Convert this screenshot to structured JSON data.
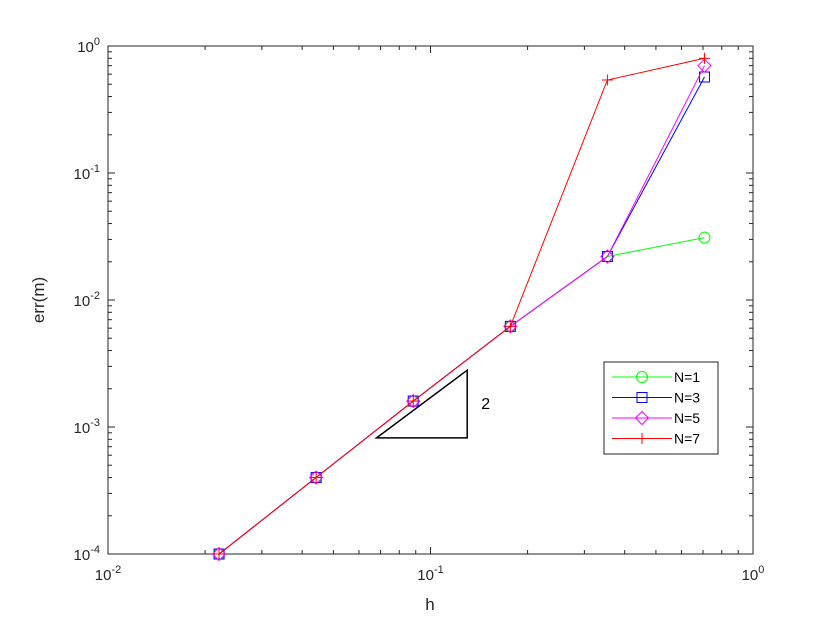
{
  "chart_data": {
    "type": "line",
    "xscale": "log",
    "yscale": "log",
    "xlim": [
      0.01,
      1
    ],
    "ylim": [
      0.0001,
      1
    ],
    "xlabel": "h",
    "ylabel": "err(m)",
    "title": "",
    "x_ticks": [
      {
        "base": "10",
        "exp": "-2"
      },
      {
        "base": "10",
        "exp": "-1"
      },
      {
        "base": "10",
        "exp": "0"
      }
    ],
    "y_ticks": [
      {
        "base": "10",
        "exp": "-4"
      },
      {
        "base": "10",
        "exp": "-3"
      },
      {
        "base": "10",
        "exp": "-2"
      },
      {
        "base": "10",
        "exp": "-1"
      },
      {
        "base": "10",
        "exp": "0"
      }
    ],
    "legend_position": "right",
    "grid": false,
    "series": [
      {
        "name": "N=1",
        "color": "#00ff00",
        "marker": "circle",
        "x": [
          0.0221,
          0.0442,
          0.0884,
          0.1768,
          0.3536,
          0.7071
        ],
        "y": [
          0.0001,
          0.0004,
          0.0016,
          0.0062,
          0.022,
          0.031
        ]
      },
      {
        "name": "N=3",
        "color": "#0000ff",
        "marker": "square",
        "x": [
          0.0221,
          0.0442,
          0.0884,
          0.1768,
          0.3536,
          0.7071
        ],
        "y": [
          0.0001,
          0.0004,
          0.0016,
          0.0062,
          0.022,
          0.57
        ]
      },
      {
        "name": "N=5",
        "color": "#ff00ff",
        "marker": "diamond",
        "x": [
          0.0221,
          0.0442,
          0.0884,
          0.1768,
          0.3536,
          0.7071
        ],
        "y": [
          0.0001,
          0.0004,
          0.0016,
          0.0062,
          0.022,
          0.7
        ]
      },
      {
        "name": "N=7",
        "color": "#ff0000",
        "marker": "plus",
        "x": [
          0.0221,
          0.0442,
          0.0884,
          0.1768,
          0.3536,
          0.7071
        ],
        "y": [
          0.0001,
          0.0004,
          0.0016,
          0.0062,
          0.54,
          0.8
        ]
      }
    ],
    "slope_triangle": {
      "label": "2",
      "vertices": [
        [
          0.068,
          0.00082
        ],
        [
          0.13,
          0.00082
        ],
        [
          0.13,
          0.0028
        ]
      ]
    }
  }
}
